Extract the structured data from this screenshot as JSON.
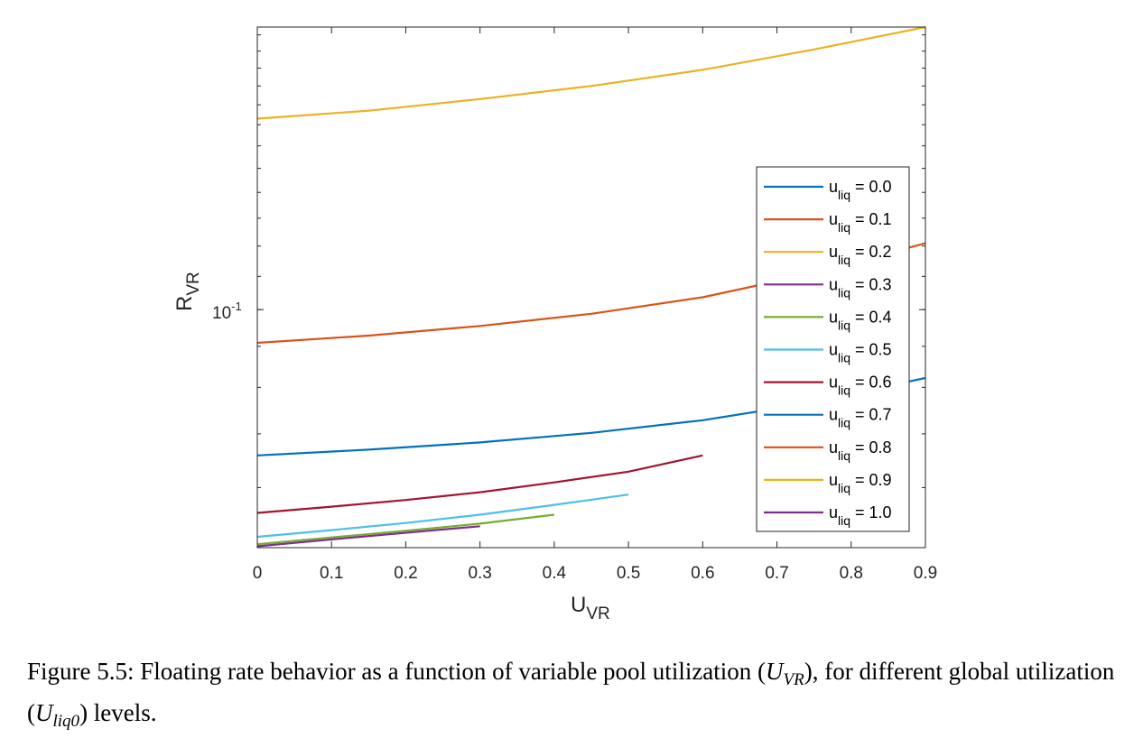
{
  "chart_data": {
    "type": "line",
    "xlabel": "U_VR",
    "ylabel": "R_VR",
    "yscale": "log",
    "xlim": [
      0,
      0.9
    ],
    "ylim": [
      0.0505,
      0.225
    ],
    "x_ticks": [
      "0",
      "0.1",
      "0.2",
      "0.3",
      "0.4",
      "0.5",
      "0.6",
      "0.7",
      "0.8",
      "0.9"
    ],
    "y_tick_labels": [
      {
        "value": 0.1,
        "base": "10",
        "exponent": "-1"
      }
    ],
    "legend_position": "inside-right",
    "grid": false,
    "series": [
      {
        "name": "u_liq = 0.0",
        "color": "#0072BD",
        "x": [
          0,
          0.15,
          0.3,
          0.45,
          0.6,
          0.75,
          0.9
        ],
        "y": [
          0.0658,
          0.0669,
          0.0683,
          0.0702,
          0.0728,
          0.0766,
          0.0822
        ]
      },
      {
        "name": "u_liq = 0.1",
        "color": "#D95319",
        "x": [
          0,
          0.15,
          0.3,
          0.45,
          0.6,
          0.75,
          0.9
        ],
        "y": [
          0.0909,
          0.0928,
          0.0954,
          0.0988,
          0.1036,
          0.111,
          0.121
        ]
      },
      {
        "name": "u_liq = 0.2",
        "color": "#EDB120",
        "x": [
          0,
          0.15,
          0.3,
          0.45,
          0.6,
          0.75,
          0.9
        ],
        "y": [
          0.173,
          0.177,
          0.183,
          0.19,
          0.199,
          0.211,
          0.225
        ]
      },
      {
        "name": "u_liq = 0.3",
        "color": "#7E2F8E",
        "x": [
          0,
          0.1,
          0.2,
          0.3
        ],
        "y": [
          0.0507,
          0.0517,
          0.0527,
          0.0537
        ]
      },
      {
        "name": "u_liq = 0.4",
        "color": "#77AC30",
        "x": [
          0,
          0.1,
          0.2,
          0.3,
          0.4
        ],
        "y": [
          0.051,
          0.052,
          0.053,
          0.0541,
          0.0555
        ]
      },
      {
        "name": "u_liq = 0.5",
        "color": "#4DBEEE",
        "x": [
          0,
          0.1,
          0.2,
          0.3,
          0.4,
          0.5
        ],
        "y": [
          0.0521,
          0.0531,
          0.0542,
          0.0555,
          0.0571,
          0.0588
        ]
      },
      {
        "name": "u_liq = 0.6",
        "color": "#A2142F",
        "x": [
          0,
          0.1,
          0.2,
          0.3,
          0.4,
          0.5,
          0.6
        ],
        "y": [
          0.0558,
          0.0568,
          0.0579,
          0.0592,
          0.0609,
          0.0628,
          0.0658
        ]
      },
      {
        "name": "u_liq = 0.7",
        "color": "#0072BD",
        "x": [],
        "y": []
      },
      {
        "name": "u_liq = 0.8",
        "color": "#D95319",
        "x": [],
        "y": []
      },
      {
        "name": "u_liq = 0.9",
        "color": "#EDB120",
        "x": [],
        "y": []
      },
      {
        "name": "u_liq = 1.0",
        "color": "#7E2F8E",
        "x": [],
        "y": []
      }
    ]
  },
  "legend": [
    {
      "main": "u",
      "sub": "liq",
      "rest": " = 0.0"
    },
    {
      "main": "u",
      "sub": "liq",
      "rest": " = 0.1"
    },
    {
      "main": "u",
      "sub": "liq",
      "rest": " = 0.2"
    },
    {
      "main": "u",
      "sub": "liq",
      "rest": " = 0.3"
    },
    {
      "main": "u",
      "sub": "liq",
      "rest": " = 0.4"
    },
    {
      "main": "u",
      "sub": "liq",
      "rest": " = 0.5"
    },
    {
      "main": "u",
      "sub": "liq",
      "rest": " = 0.6"
    },
    {
      "main": "u",
      "sub": "liq",
      "rest": " = 0.7"
    },
    {
      "main": "u",
      "sub": "liq",
      "rest": " = 0.8"
    },
    {
      "main": "u",
      "sub": "liq",
      "rest": " = 0.9"
    },
    {
      "main": "u",
      "sub": "liq",
      "rest": " = 1.0"
    }
  ],
  "axes": {
    "xlabel_main": "U",
    "xlabel_sub": "VR",
    "ylabel_main": "R",
    "ylabel_sub": "VR"
  },
  "caption": {
    "part1": "Figure 5.5: Floating rate behavior as a function of variable pool utilization (",
    "sym1_main": "U",
    "sym1_sub": "VR",
    "part2": "), for different global utilization (",
    "sym2_main": "U",
    "sym2_sub": "liq0",
    "part3": ") levels."
  }
}
